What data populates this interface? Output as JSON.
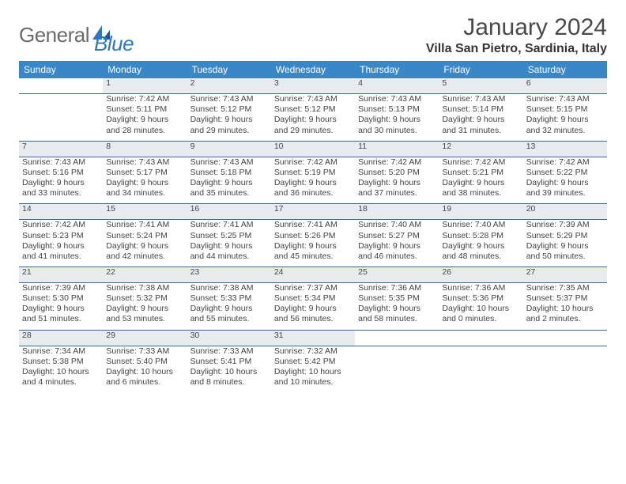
{
  "brand": {
    "name_a": "General",
    "name_b": "Blue"
  },
  "colors": {
    "header_bg": "#3a87c8",
    "header_text": "#ffffff",
    "daynum_bg": "#e9ecef",
    "rule": "#3a6a9a",
    "logo_gray": "#6b6b6b",
    "logo_blue": "#2f78bd"
  },
  "title": "January 2024",
  "location": "Villa San Pietro, Sardinia, Italy",
  "weekdays": [
    "Sunday",
    "Monday",
    "Tuesday",
    "Wednesday",
    "Thursday",
    "Friday",
    "Saturday"
  ],
  "weeks": [
    {
      "nums": [
        "",
        "1",
        "2",
        "3",
        "4",
        "5",
        "6"
      ],
      "infos": [
        "",
        "Sunrise: 7:42 AM\nSunset: 5:11 PM\nDaylight: 9 hours and 28 minutes.",
        "Sunrise: 7:43 AM\nSunset: 5:12 PM\nDaylight: 9 hours and 29 minutes.",
        "Sunrise: 7:43 AM\nSunset: 5:12 PM\nDaylight: 9 hours and 29 minutes.",
        "Sunrise: 7:43 AM\nSunset: 5:13 PM\nDaylight: 9 hours and 30 minutes.",
        "Sunrise: 7:43 AM\nSunset: 5:14 PM\nDaylight: 9 hours and 31 minutes.",
        "Sunrise: 7:43 AM\nSunset: 5:15 PM\nDaylight: 9 hours and 32 minutes."
      ]
    },
    {
      "nums": [
        "7",
        "8",
        "9",
        "10",
        "11",
        "12",
        "13"
      ],
      "infos": [
        "Sunrise: 7:43 AM\nSunset: 5:16 PM\nDaylight: 9 hours and 33 minutes.",
        "Sunrise: 7:43 AM\nSunset: 5:17 PM\nDaylight: 9 hours and 34 minutes.",
        "Sunrise: 7:43 AM\nSunset: 5:18 PM\nDaylight: 9 hours and 35 minutes.",
        "Sunrise: 7:42 AM\nSunset: 5:19 PM\nDaylight: 9 hours and 36 minutes.",
        "Sunrise: 7:42 AM\nSunset: 5:20 PM\nDaylight: 9 hours and 37 minutes.",
        "Sunrise: 7:42 AM\nSunset: 5:21 PM\nDaylight: 9 hours and 38 minutes.",
        "Sunrise: 7:42 AM\nSunset: 5:22 PM\nDaylight: 9 hours and 39 minutes."
      ]
    },
    {
      "nums": [
        "14",
        "15",
        "16",
        "17",
        "18",
        "19",
        "20"
      ],
      "infos": [
        "Sunrise: 7:42 AM\nSunset: 5:23 PM\nDaylight: 9 hours and 41 minutes.",
        "Sunrise: 7:41 AM\nSunset: 5:24 PM\nDaylight: 9 hours and 42 minutes.",
        "Sunrise: 7:41 AM\nSunset: 5:25 PM\nDaylight: 9 hours and 44 minutes.",
        "Sunrise: 7:41 AM\nSunset: 5:26 PM\nDaylight: 9 hours and 45 minutes.",
        "Sunrise: 7:40 AM\nSunset: 5:27 PM\nDaylight: 9 hours and 46 minutes.",
        "Sunrise: 7:40 AM\nSunset: 5:28 PM\nDaylight: 9 hours and 48 minutes.",
        "Sunrise: 7:39 AM\nSunset: 5:29 PM\nDaylight: 9 hours and 50 minutes."
      ]
    },
    {
      "nums": [
        "21",
        "22",
        "23",
        "24",
        "25",
        "26",
        "27"
      ],
      "infos": [
        "Sunrise: 7:39 AM\nSunset: 5:30 PM\nDaylight: 9 hours and 51 minutes.",
        "Sunrise: 7:38 AM\nSunset: 5:32 PM\nDaylight: 9 hours and 53 minutes.",
        "Sunrise: 7:38 AM\nSunset: 5:33 PM\nDaylight: 9 hours and 55 minutes.",
        "Sunrise: 7:37 AM\nSunset: 5:34 PM\nDaylight: 9 hours and 56 minutes.",
        "Sunrise: 7:36 AM\nSunset: 5:35 PM\nDaylight: 9 hours and 58 minutes.",
        "Sunrise: 7:36 AM\nSunset: 5:36 PM\nDaylight: 10 hours and 0 minutes.",
        "Sunrise: 7:35 AM\nSunset: 5:37 PM\nDaylight: 10 hours and 2 minutes."
      ]
    },
    {
      "nums": [
        "28",
        "29",
        "30",
        "31",
        "",
        "",
        ""
      ],
      "infos": [
        "Sunrise: 7:34 AM\nSunset: 5:38 PM\nDaylight: 10 hours and 4 minutes.",
        "Sunrise: 7:33 AM\nSunset: 5:40 PM\nDaylight: 10 hours and 6 minutes.",
        "Sunrise: 7:33 AM\nSunset: 5:41 PM\nDaylight: 10 hours and 8 minutes.",
        "Sunrise: 7:32 AM\nSunset: 5:42 PM\nDaylight: 10 hours and 10 minutes.",
        "",
        "",
        ""
      ]
    }
  ]
}
